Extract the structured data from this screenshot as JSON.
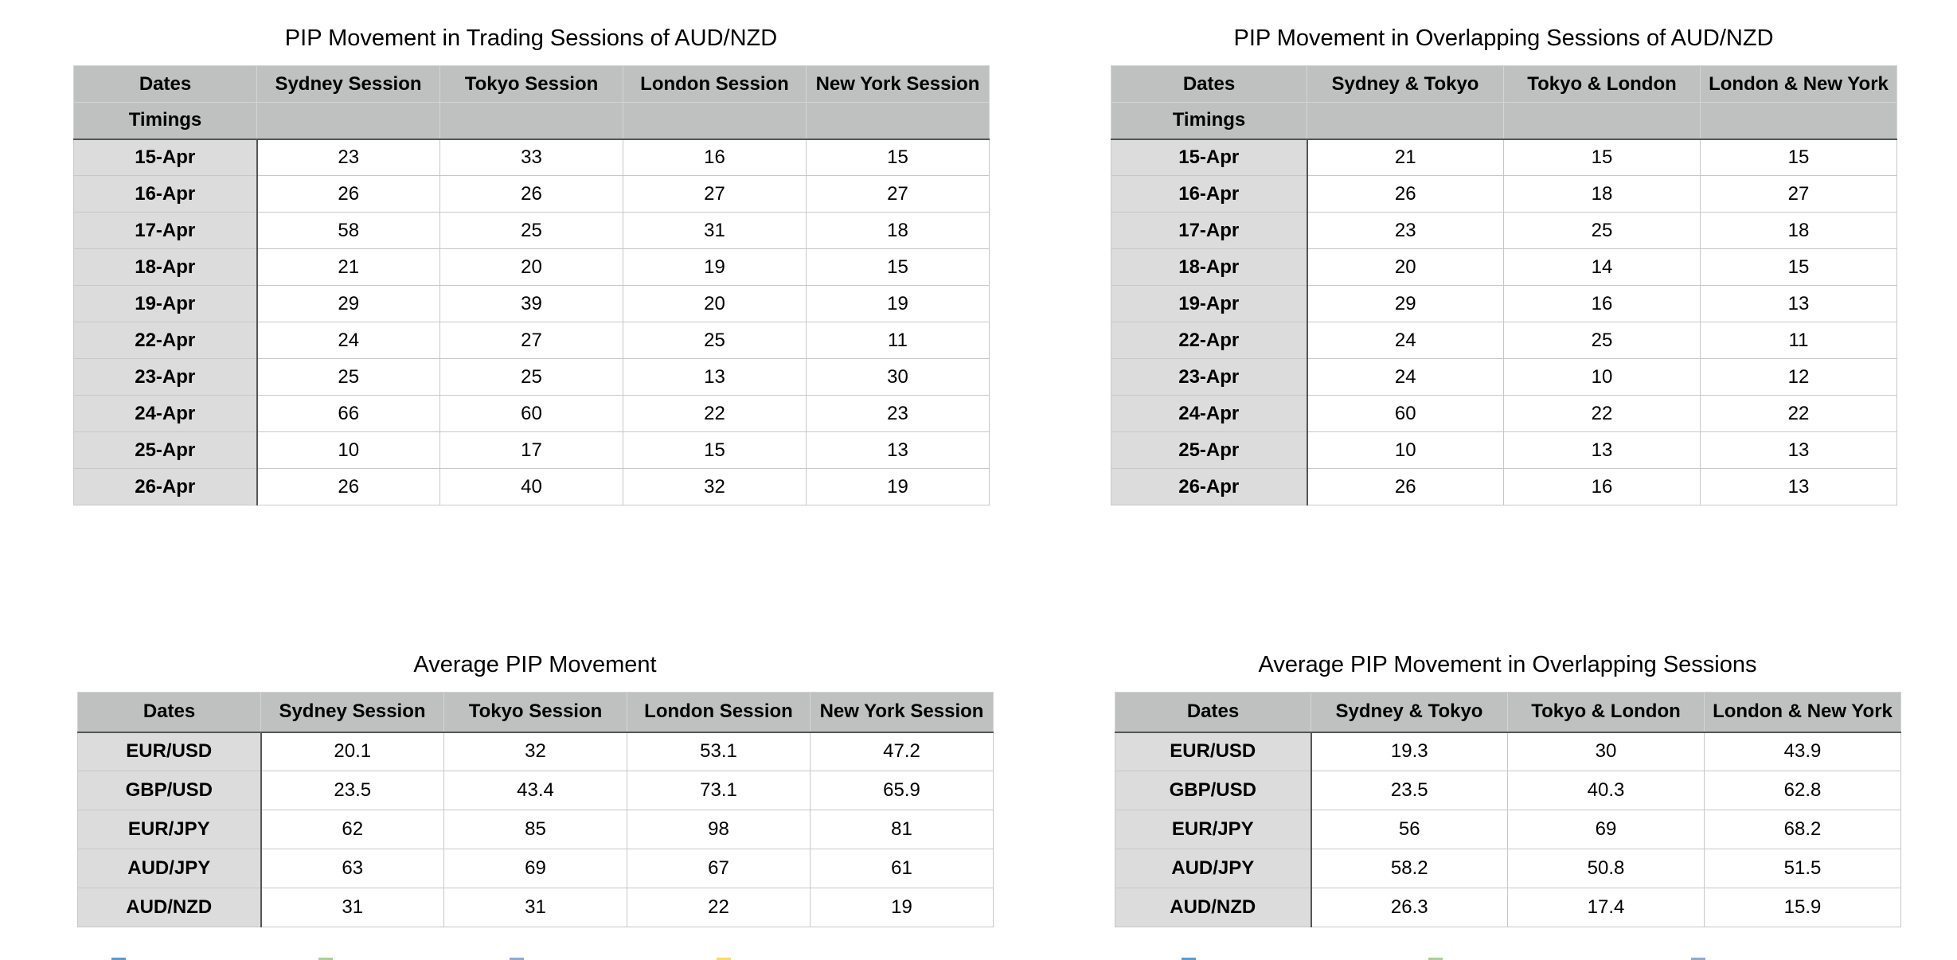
{
  "tables": {
    "t1": {
      "title": "PIP Movement in Trading Sessions of AUD/NZD",
      "header_labels": [
        "Dates",
        "Sydney Session",
        "Tokyo Session",
        "London Session",
        "New York Session"
      ],
      "subheader_label": "Timings",
      "rows": [
        [
          "15-Apr",
          "23",
          "33",
          "16",
          "15"
        ],
        [
          "16-Apr",
          "26",
          "26",
          "27",
          "27"
        ],
        [
          "17-Apr",
          "58",
          "25",
          "31",
          "18"
        ],
        [
          "18-Apr",
          "21",
          "20",
          "19",
          "15"
        ],
        [
          "19-Apr",
          "29",
          "39",
          "20",
          "19"
        ],
        [
          "22-Apr",
          "24",
          "27",
          "25",
          "11"
        ],
        [
          "23-Apr",
          "25",
          "25",
          "13",
          "30"
        ],
        [
          "24-Apr",
          "66",
          "60",
          "22",
          "23"
        ],
        [
          "25-Apr",
          "10",
          "17",
          "15",
          "13"
        ],
        [
          "26-Apr",
          "26",
          "40",
          "32",
          "19"
        ]
      ]
    },
    "t2": {
      "title": "PIP Movement in Overlapping Sessions of AUD/NZD",
      "header_labels": [
        "Dates",
        "Sydney & Tokyo",
        "Tokyo &  London",
        "London & New York"
      ],
      "subheader_label": "Timings",
      "rows": [
        [
          "15-Apr",
          "21",
          "15",
          "15"
        ],
        [
          "16-Apr",
          "26",
          "18",
          "27"
        ],
        [
          "17-Apr",
          "23",
          "25",
          "18"
        ],
        [
          "18-Apr",
          "20",
          "14",
          "15"
        ],
        [
          "19-Apr",
          "29",
          "16",
          "13"
        ],
        [
          "22-Apr",
          "24",
          "25",
          "11"
        ],
        [
          "23-Apr",
          "24",
          "10",
          "12"
        ],
        [
          "24-Apr",
          "60",
          "22",
          "22"
        ],
        [
          "25-Apr",
          "10",
          "13",
          "13"
        ],
        [
          "26-Apr",
          "26",
          "16",
          "13"
        ]
      ]
    },
    "t3": {
      "title": "Average PIP Movement",
      "header_labels": [
        "Dates",
        "Sydney Session",
        "Tokyo Session",
        "London Session",
        "New York Session"
      ],
      "rows": [
        [
          "EUR/USD",
          "20.1",
          "32",
          "53.1",
          "47.2"
        ],
        [
          "GBP/USD",
          "23.5",
          "43.4",
          "73.1",
          "65.9"
        ],
        [
          "EUR/JPY",
          "62",
          "85",
          "98",
          "81"
        ],
        [
          "AUD/JPY",
          "63",
          "69",
          "67",
          "61"
        ],
        [
          "AUD/NZD",
          "31",
          "31",
          "22",
          "19"
        ]
      ]
    },
    "t4": {
      "title": "Average PIP Movement in Overlapping Sessions",
      "header_labels": [
        "Dates",
        "Sydney & Tokyo",
        "Tokyo &  London",
        "London & New York"
      ],
      "rows": [
        [
          "EUR/USD",
          "19.3",
          "30",
          "43.9"
        ],
        [
          "GBP/USD",
          "23.5",
          "40.3",
          "62.8"
        ],
        [
          "EUR/JPY",
          "56",
          "69",
          "68.2"
        ],
        [
          "AUD/JPY",
          "58.2",
          "50.8",
          "51.5"
        ],
        [
          "AUD/NZD",
          "26.3",
          "17.4",
          "15.9"
        ]
      ]
    }
  },
  "colors": {
    "header_fill": "#bfc1c0",
    "rowhead_fill": "#dcdcdc",
    "legend_marks_left": [
      "#5b9bd5",
      "#a9d08e",
      "#8ea9db",
      "#ffd966"
    ],
    "legend_marks_right": [
      "#5b9bd5",
      "#a9d08e",
      "#8ea9db"
    ]
  }
}
